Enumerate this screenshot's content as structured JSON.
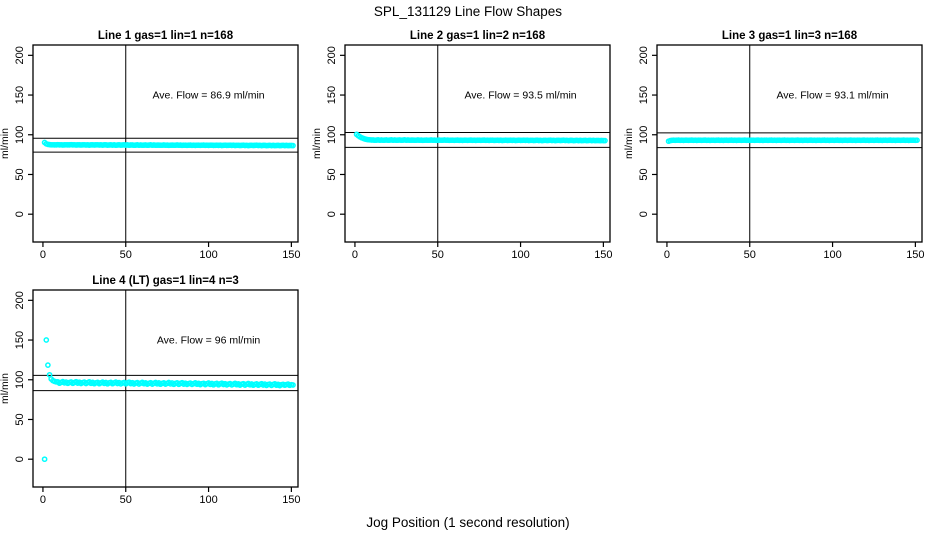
{
  "figure": {
    "title": "SPL_131129  Line Flow Shapes",
    "xlabel": "Jog Position (1 second resolution)",
    "background_color": "#ffffff",
    "axis_color": "#000000",
    "point_color": "#00ffff"
  },
  "chart_data": [
    {
      "type": "scatter",
      "title": "Line 1 gas=1 lin=1 n=168",
      "annotation": "Ave. Flow =  86.9  ml/min",
      "ave_flow_ml_min": 86.9,
      "n": 168,
      "ylabel": "ml/min",
      "xticks": [
        0,
        50,
        100,
        150
      ],
      "yticks": [
        0,
        50,
        100,
        150,
        200
      ],
      "xlim": [
        -6,
        154
      ],
      "ylim": [
        -35,
        213
      ],
      "vline_x": 50,
      "hlines": [
        95.6,
        78.2
      ],
      "annotation_xy": [
        100,
        150
      ],
      "x_start": 1,
      "x_step": 1,
      "y": [
        90.3,
        88.6,
        87.9,
        87.6,
        87.4,
        87.4,
        87.2,
        87.3,
        87.5,
        87.2,
        87.4,
        87.1,
        87.3,
        87.4,
        87.2,
        87.3,
        87.5,
        87.2,
        87.4,
        87.1,
        87.3,
        87.3,
        87.1,
        87.2,
        87.4,
        87.1,
        87.3,
        87.0,
        87.2,
        87.3,
        87.1,
        87.2,
        87.4,
        87.1,
        87.3,
        87.0,
        87.2,
        87.2,
        87.0,
        87.1,
        87.3,
        87.0,
        87.2,
        86.9,
        87.1,
        87.2,
        87.0,
        87.1,
        87.3,
        87.0,
        87.2,
        86.9,
        87.1,
        87.1,
        86.9,
        87.0,
        87.2,
        86.9,
        87.1,
        86.8,
        87.0,
        87.1,
        86.9,
        87.0,
        87.2,
        86.9,
        87.1,
        86.8,
        87.0,
        87.0,
        86.8,
        86.9,
        87.1,
        86.8,
        87.0,
        86.7,
        86.9,
        87.0,
        86.8,
        86.9,
        87.1,
        86.8,
        87.0,
        86.7,
        86.9,
        86.9,
        86.7,
        86.8,
        87.0,
        86.7,
        86.9,
        86.6,
        86.8,
        86.9,
        86.7,
        86.8,
        87.0,
        86.7,
        86.9,
        86.6,
        86.8,
        86.8,
        86.6,
        86.7,
        86.9,
        86.6,
        86.8,
        86.5,
        86.7,
        86.8,
        86.6,
        86.7,
        86.9,
        86.6,
        86.8,
        86.5,
        86.7,
        86.7,
        86.5,
        86.6,
        86.8,
        86.5,
        86.7,
        86.4,
        86.6,
        86.7,
        86.5,
        86.6,
        86.8,
        86.5,
        86.7,
        86.4,
        86.6,
        86.6,
        86.4,
        86.5,
        86.7,
        86.4,
        86.6,
        86.3,
        86.5,
        86.6,
        86.4,
        86.5,
        86.7,
        86.4,
        86.6,
        86.3,
        86.5,
        86.5,
        86.4
      ]
    },
    {
      "type": "scatter",
      "title": "Line 2 gas=1 lin=2 n=168",
      "annotation": "Ave. Flow =  93.5  ml/min",
      "ave_flow_ml_min": 93.5,
      "n": 168,
      "ylabel": "ml/min",
      "xticks": [
        0,
        50,
        100,
        150
      ],
      "yticks": [
        0,
        50,
        100,
        150,
        200
      ],
      "xlim": [
        -6,
        154
      ],
      "ylim": [
        -35,
        213
      ],
      "vline_x": 50,
      "hlines": [
        102.9,
        84.2
      ],
      "annotation_xy": [
        100,
        150
      ],
      "x_start": 1,
      "x_step": 1,
      "y": [
        100.4,
        98.8,
        97.4,
        96.3,
        95.4,
        94.7,
        94.2,
        93.8,
        93.6,
        93.4,
        93.4,
        93.2,
        93.3,
        93.5,
        93.2,
        93.4,
        93.1,
        93.3,
        93.4,
        93.2,
        93.3,
        93.5,
        93.2,
        93.4,
        93.1,
        93.3,
        93.4,
        93.2,
        93.3,
        93.5,
        93.2,
        93.4,
        93.1,
        93.3,
        93.3,
        93.1,
        93.2,
        93.4,
        93.1,
        93.3,
        93.0,
        93.2,
        93.3,
        93.1,
        93.2,
        93.4,
        93.1,
        93.3,
        93.0,
        93.2,
        93.3,
        93.1,
        93.2,
        93.4,
        93.1,
        93.3,
        93.0,
        93.2,
        93.2,
        93.0,
        93.1,
        93.3,
        93.0,
        93.2,
        92.9,
        93.1,
        93.2,
        93.0,
        93.1,
        93.3,
        93.0,
        93.2,
        92.9,
        93.1,
        93.2,
        93.0,
        93.1,
        93.3,
        93.0,
        93.2,
        92.9,
        93.1,
        93.1,
        92.9,
        93.0,
        93.2,
        92.9,
        93.1,
        92.8,
        93.0,
        93.1,
        92.9,
        93.0,
        93.2,
        92.9,
        93.1,
        92.8,
        93.0,
        93.1,
        92.9,
        93.0,
        93.2,
        92.9,
        93.1,
        92.8,
        93.0,
        93.0,
        92.8,
        92.9,
        93.1,
        92.8,
        93.0,
        92.7,
        92.9,
        93.0,
        92.8,
        92.9,
        93.1,
        92.8,
        93.0,
        92.7,
        92.9,
        93.0,
        92.8,
        92.9,
        93.1,
        92.8,
        93.0,
        92.7,
        92.9,
        92.9,
        92.7,
        92.8,
        93.0,
        92.7,
        92.9,
        92.6,
        92.8,
        92.9,
        92.7,
        92.8,
        93.0,
        92.7,
        92.9,
        92.6,
        92.8,
        92.8,
        92.7,
        92.8,
        92.6,
        92.7
      ]
    },
    {
      "type": "scatter",
      "title": "Line 3 gas=1 lin=3 n=168",
      "annotation": "Ave. Flow =  93.1  ml/min",
      "ave_flow_ml_min": 93.1,
      "n": 168,
      "ylabel": "ml/min",
      "xticks": [
        0,
        50,
        100,
        150
      ],
      "yticks": [
        0,
        50,
        100,
        150,
        200
      ],
      "xlim": [
        -6,
        154
      ],
      "ylim": [
        -35,
        213
      ],
      "vline_x": 50,
      "hlines": [
        102.4,
        83.8
      ],
      "annotation_xy": [
        100,
        150
      ],
      "x_start": 1,
      "x_step": 1,
      "y": [
        91.9,
        92.6,
        93.0,
        93.2,
        93.0,
        93.1,
        93.3,
        93.0,
        93.2,
        92.9,
        93.1,
        93.2,
        93.0,
        93.1,
        93.3,
        93.0,
        93.2,
        92.9,
        93.1,
        93.2,
        93.0,
        93.1,
        93.3,
        93.0,
        93.2,
        92.9,
        93.1,
        93.2,
        93.0,
        93.1,
        93.3,
        93.0,
        93.2,
        92.9,
        93.1,
        93.2,
        93.0,
        93.1,
        93.3,
        93.0,
        93.2,
        92.9,
        93.1,
        93.2,
        93.0,
        93.1,
        93.3,
        93.0,
        93.2,
        92.9,
        93.1,
        93.2,
        93.0,
        93.1,
        93.3,
        93.0,
        93.2,
        92.9,
        93.1,
        93.2,
        93.0,
        93.1,
        93.3,
        93.0,
        93.2,
        92.9,
        93.1,
        93.2,
        93.0,
        93.1,
        93.3,
        93.0,
        93.2,
        92.9,
        93.1,
        93.2,
        93.0,
        93.1,
        93.3,
        93.0,
        93.2,
        92.9,
        93.1,
        93.2,
        93.0,
        93.1,
        93.3,
        93.0,
        93.2,
        92.9,
        93.1,
        93.2,
        93.0,
        93.1,
        93.3,
        93.0,
        93.2,
        92.9,
        93.1,
        93.2,
        93.0,
        93.1,
        93.3,
        93.0,
        93.2,
        92.9,
        93.1,
        93.2,
        93.0,
        93.1,
        93.3,
        93.0,
        93.2,
        92.9,
        93.1,
        93.2,
        93.0,
        93.1,
        93.3,
        93.0,
        93.2,
        92.9,
        93.1,
        93.2,
        93.0,
        93.1,
        93.3,
        93.0,
        93.2,
        92.9,
        93.1,
        93.2,
        93.0,
        93.1,
        93.3,
        93.0,
        93.2,
        92.9,
        93.1,
        93.2,
        93.0,
        93.1,
        93.3,
        93.0,
        93.2,
        92.9,
        93.1,
        93.1,
        93.2,
        93.0,
        93.1
      ]
    },
    {
      "type": "scatter",
      "title": "Line 4 (LT) gas=1 lin=4 n=3",
      "annotation": "Ave. Flow =  96  ml/min",
      "ave_flow_ml_min": 96,
      "n": 3,
      "ylabel": "ml/min",
      "xticks": [
        0,
        50,
        100,
        150
      ],
      "yticks": [
        0,
        50,
        100,
        150,
        200
      ],
      "xlim": [
        -6,
        154
      ],
      "ylim": [
        -35,
        213
      ],
      "vline_x": 50,
      "hlines": [
        105.6,
        86.4
      ],
      "annotation_xy": [
        100,
        150
      ],
      "x_start": 1,
      "x_step": 1,
      "y": [
        0,
        150,
        118.5,
        106.2,
        101.0,
        99.0,
        98.0,
        97.3,
        97.4,
        95.7,
        96.8,
        97.7,
        96.0,
        97.1,
        95.5,
        96.6,
        97.2,
        95.5,
        96.6,
        97.5,
        95.8,
        96.9,
        95.3,
        96.4,
        97.0,
        95.3,
        96.4,
        97.3,
        95.6,
        96.7,
        95.1,
        96.2,
        96.8,
        95.1,
        96.2,
        97.1,
        95.4,
        96.5,
        94.9,
        96.0,
        96.7,
        95.0,
        96.1,
        97.0,
        95.3,
        96.4,
        94.8,
        95.9,
        96.6,
        94.9,
        96.0,
        96.9,
        95.2,
        96.3,
        94.7,
        95.8,
        96.4,
        94.7,
        95.8,
        96.7,
        95.0,
        96.1,
        94.5,
        95.6,
        96.3,
        94.6,
        95.7,
        96.6,
        94.9,
        96.0,
        94.4,
        95.5,
        96.2,
        94.5,
        95.6,
        96.5,
        94.8,
        95.9,
        94.3,
        95.4,
        96.0,
        94.3,
        95.4,
        96.3,
        94.6,
        95.7,
        94.1,
        95.2,
        95.8,
        94.1,
        95.2,
        96.1,
        94.4,
        95.5,
        93.9,
        95.0,
        95.6,
        93.9,
        95.0,
        95.9,
        94.2,
        95.3,
        93.7,
        94.8,
        95.4,
        93.7,
        94.8,
        95.7,
        94.0,
        95.1,
        93.5,
        94.6,
        95.2,
        93.5,
        94.6,
        95.5,
        93.8,
        94.9,
        93.3,
        94.4,
        95.0,
        93.3,
        94.4,
        95.3,
        93.6,
        94.7,
        93.1,
        94.2,
        94.8,
        93.1,
        94.2,
        95.1,
        93.4,
        94.5,
        92.9,
        94.0,
        94.6,
        92.9,
        94.0,
        94.9,
        93.2,
        94.3,
        92.7,
        93.8,
        94.3,
        93.1,
        93.9,
        94.5,
        93.0,
        93.8,
        93.4
      ]
    }
  ]
}
